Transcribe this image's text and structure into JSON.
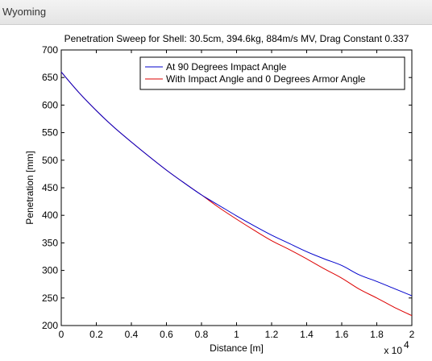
{
  "window": {
    "title": "Wyoming"
  },
  "chart_data": {
    "type": "line",
    "title": "Penetration Sweep for Shell: 30.5cm, 394.6kg, 884m/s MV, Drag Constant 0.337",
    "xlabel": "Distance [m]",
    "ylabel": "Penetration [mm]",
    "x_exponent_label": "x 10",
    "x_exponent_power": "4",
    "xlim": [
      0,
      20000
    ],
    "ylim": [
      200,
      700
    ],
    "x_ticks": [
      0,
      2000,
      4000,
      6000,
      8000,
      10000,
      12000,
      14000,
      16000,
      18000,
      20000
    ],
    "x_tick_labels": [
      "0",
      "0.2",
      "0.4",
      "0.6",
      "0.8",
      "1",
      "1.2",
      "1.4",
      "1.6",
      "1.8",
      "2"
    ],
    "y_ticks": [
      200,
      250,
      300,
      350,
      400,
      450,
      500,
      550,
      600,
      650,
      700
    ],
    "y_tick_labels": [
      "200",
      "250",
      "300",
      "350",
      "400",
      "450",
      "500",
      "550",
      "600",
      "650",
      "700"
    ],
    "grid": false,
    "legend_position": "top-right",
    "series": [
      {
        "name": "At 90 Degrees Impact Angle",
        "color": "#0000cc",
        "x": [
          0,
          1000,
          2000,
          3000,
          4000,
          5000,
          6000,
          7000,
          8000,
          9000,
          10000,
          11000,
          12000,
          13000,
          14000,
          15000,
          16000,
          17000,
          18000,
          19000,
          20000
        ],
        "y": [
          660,
          623,
          590,
          560,
          533,
          507,
          482,
          459,
          437,
          418,
          399,
          381,
          364,
          349,
          334,
          321,
          309,
          292,
          280,
          267,
          254
        ]
      },
      {
        "name": "With Impact Angle and 0 Degrees Armor Angle",
        "color": "#dd0000",
        "x": [
          0,
          1000,
          2000,
          3000,
          4000,
          5000,
          6000,
          7000,
          8000,
          9000,
          10000,
          11000,
          12000,
          13000,
          14000,
          15000,
          16000,
          17000,
          18000,
          19000,
          20000
        ],
        "y": [
          660,
          623,
          590,
          560,
          533,
          507,
          482,
          459,
          437,
          414,
          393,
          373,
          354,
          338,
          321,
          303,
          286,
          266,
          250,
          233,
          218
        ]
      }
    ]
  }
}
